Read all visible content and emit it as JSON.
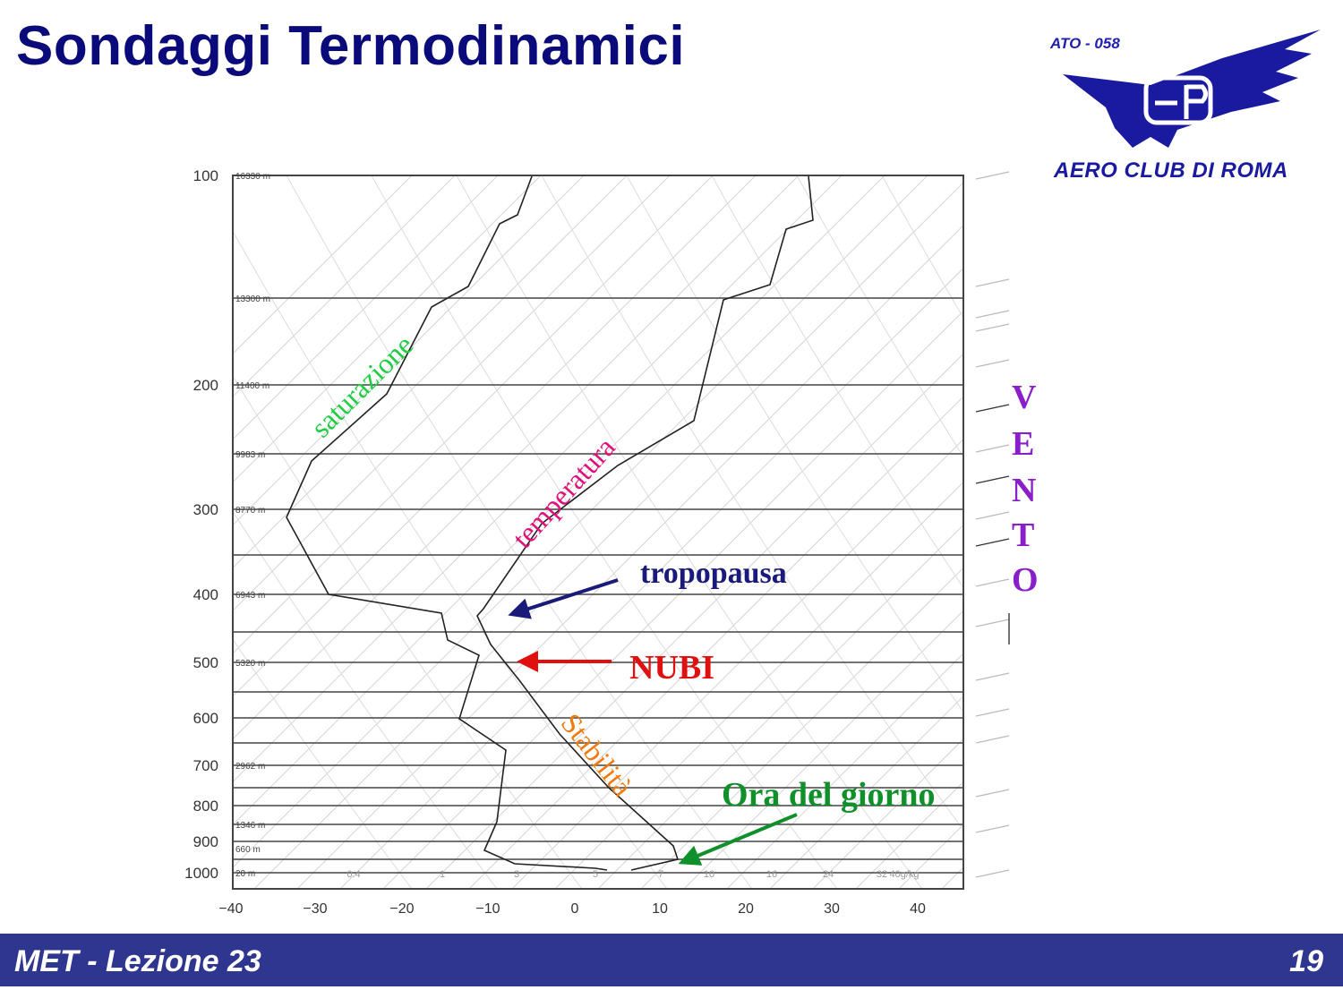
{
  "slide": {
    "title": "Sondaggi Termodinamici",
    "footer_lesson": "MET - Lezione 23",
    "page_number": "19"
  },
  "logo": {
    "code": "ATO - 058",
    "name": "AERO CLUB DI ROMA",
    "monogram": "AP",
    "color": "#1a1aa0"
  },
  "diagram": {
    "pressure_labels": [
      "100",
      "200",
      "300",
      "400",
      "500",
      "600",
      "700",
      "800",
      "900",
      "1000"
    ],
    "height_labels": [
      "16330 m",
      "13300 m",
      "11400 m",
      "9983 m",
      "8770 m",
      "6943 m",
      "5320 m",
      "2962 m",
      "1346 m",
      "660 m",
      "20 m"
    ],
    "temperature_labels": [
      "−40",
      "−30",
      "−20",
      "−10",
      "0",
      "10",
      "20",
      "30",
      "40"
    ],
    "mixing_ratio_labels": [
      "0.4",
      "1",
      "3",
      "5",
      "7",
      "10",
      "16",
      "24",
      "32",
      "40g/kg"
    ],
    "annotations": {
      "saturazione": "saturazione",
      "temperatura": "temperatura",
      "tropopausa": "tropopausa",
      "nubi": "NUBI",
      "stabilita": "Stabilità",
      "ora_del_giorno": "Ora del giorno"
    },
    "vento_letters": [
      "V",
      "E",
      "N",
      "T",
      "O"
    ],
    "colors": {
      "saturazione": "#22cc44",
      "temperatura": "#e0107a",
      "tropopausa": "#1a1a7a",
      "nubi": "#e01010",
      "stabilita": "#f07a10",
      "ora_del_giorno": "#10902a",
      "vento": "#8a1ec8"
    }
  }
}
